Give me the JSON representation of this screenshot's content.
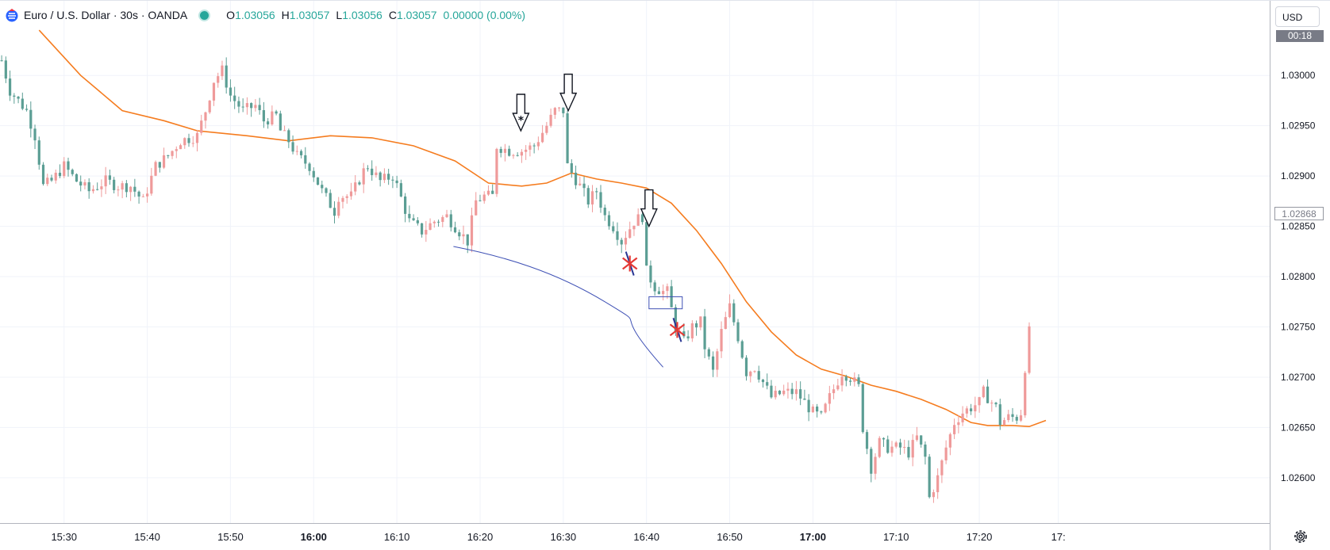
{
  "legend": {
    "symbol": "Euro / U.S. Dollar · 30s · OANDA",
    "open_label": "O",
    "open": "1.03056",
    "high_label": "H",
    "high": "1.03057",
    "low_label": "L",
    "low": "1.03056",
    "close_label": "C",
    "close": "1.03057",
    "change": "0.00000 (0.00%)"
  },
  "price_axis": {
    "currency": "USD",
    "countdown": "00:18",
    "last_price_label": "1.02868"
  },
  "icons": [
    "tradingview-logo-icon",
    "market-status-dot-icon",
    "settings-gear-icon"
  ],
  "colors": {
    "up": "#ef9a9a",
    "down": "#5b9e94",
    "ma": "#f57c1f",
    "curve": "#3f51b5",
    "cross": "#e53935",
    "grid": "#f0f3fa"
  },
  "chart_data": {
    "type": "candlestick",
    "xlabel": "",
    "ylabel": "",
    "ylim": [
      1.02555,
      1.03075
    ],
    "y_ticks": [
      1.03,
      1.0295,
      1.029,
      1.0285,
      1.028,
      1.0275,
      1.027,
      1.0265,
      1.026
    ],
    "y_tick_labels": [
      "1.03000",
      "1.02950",
      "1.02900",
      "1.02850",
      "1.02800",
      "1.02750",
      "1.02700",
      "1.02650",
      "1.02600"
    ],
    "x_range_minutes": [
      922.3,
      1074.9
    ],
    "x_ticks": [
      {
        "label": "15:30",
        "t": 930,
        "bold": false
      },
      {
        "label": "15:40",
        "t": 940,
        "bold": false
      },
      {
        "label": "15:50",
        "t": 950,
        "bold": false
      },
      {
        "label": "16:00",
        "t": 960,
        "bold": true
      },
      {
        "label": "16:10",
        "t": 970,
        "bold": false
      },
      {
        "label": "16:20",
        "t": 980,
        "bold": false
      },
      {
        "label": "16:30",
        "t": 990,
        "bold": false
      },
      {
        "label": "16:40",
        "t": 1000,
        "bold": false
      },
      {
        "label": "16:50",
        "t": 1010,
        "bold": false
      },
      {
        "label": "17:00",
        "t": 1020,
        "bold": true
      },
      {
        "label": "17:10",
        "t": 1030,
        "bold": false
      },
      {
        "label": "17:20",
        "t": 1040,
        "bold": false
      },
      {
        "label": "17:",
        "t": 1049.5,
        "bold": false
      }
    ],
    "close_path": [
      [
        922.5,
        1.03015
      ],
      [
        923.5,
        1.02985
      ],
      [
        925.5,
        1.02965
      ],
      [
        926.5,
        1.0294
      ],
      [
        927.5,
        1.0289
      ],
      [
        928.5,
        1.02895
      ],
      [
        930.0,
        1.0291
      ],
      [
        931.5,
        1.02895
      ],
      [
        933.0,
        1.02885
      ],
      [
        935.0,
        1.02895
      ],
      [
        936.5,
        1.0289
      ],
      [
        938.0,
        1.0289
      ],
      [
        939.5,
        1.02875
      ],
      [
        941.0,
        1.0291
      ],
      [
        942.5,
        1.0292
      ],
      [
        944.0,
        1.02935
      ],
      [
        946.0,
        1.0294
      ],
      [
        947.0,
        1.02965
      ],
      [
        948.0,
        1.02995
      ],
      [
        949.0,
        1.03005
      ],
      [
        950.0,
        1.0298
      ],
      [
        951.5,
        1.02965
      ],
      [
        953.0,
        1.0297
      ],
      [
        954.0,
        1.02955
      ],
      [
        955.5,
        1.0296
      ],
      [
        956.0,
        1.02945
      ],
      [
        957.0,
        1.02935
      ],
      [
        958.0,
        1.0292
      ],
      [
        959.5,
        1.0291
      ],
      [
        961.0,
        1.02885
      ],
      [
        962.5,
        1.02865
      ],
      [
        963.0,
        1.0288
      ],
      [
        964.5,
        1.0288
      ],
      [
        966.0,
        1.02905
      ],
      [
        966.5,
        1.0291
      ],
      [
        968.0,
        1.02895
      ],
      [
        969.5,
        1.029
      ],
      [
        970.0,
        1.0289
      ],
      [
        971.5,
        1.02855
      ],
      [
        973.0,
        1.02845
      ],
      [
        974.5,
        1.02855
      ],
      [
        976.0,
        1.0286
      ],
      [
        977.5,
        1.02845
      ],
      [
        978.5,
        1.02835
      ],
      [
        979.5,
        1.02875
      ],
      [
        980.5,
        1.0288
      ],
      [
        981.5,
        1.0288
      ],
      [
        982.0,
        1.0293
      ],
      [
        983.5,
        1.02925
      ],
      [
        985.0,
        1.02925
      ],
      [
        986.5,
        1.0293
      ],
      [
        988.0,
        1.0295
      ],
      [
        989.0,
        1.02965
      ],
      [
        990.0,
        1.02965
      ],
      [
        990.5,
        1.0291
      ],
      [
        992.0,
        1.0289
      ],
      [
        993.0,
        1.02875
      ],
      [
        994.0,
        1.02885
      ],
      [
        995.0,
        1.0286
      ],
      [
        996.0,
        1.0285
      ],
      [
        997.0,
        1.02835
      ],
      [
        998.5,
        1.02855
      ],
      [
        999.5,
        1.0286
      ],
      [
        1000.0,
        1.02805
      ],
      [
        1001.0,
        1.0279
      ],
      [
        1002.0,
        1.02785
      ],
      [
        1002.5,
        1.02785
      ],
      [
        1003.5,
        1.0275
      ],
      [
        1004.5,
        1.02735
      ],
      [
        1005.5,
        1.0275
      ],
      [
        1006.5,
        1.02755
      ],
      [
        1007.0,
        1.0273
      ],
      [
        1008.0,
        1.02705
      ],
      [
        1009.0,
        1.02745
      ],
      [
        1010.0,
        1.0277
      ],
      [
        1011.0,
        1.0274
      ],
      [
        1012.0,
        1.02705
      ],
      [
        1013.0,
        1.0271
      ],
      [
        1014.0,
        1.02695
      ],
      [
        1015.0,
        1.0268
      ],
      [
        1016.5,
        1.02685
      ],
      [
        1018.0,
        1.02685
      ],
      [
        1019.0,
        1.02675
      ],
      [
        1020.0,
        1.02665
      ],
      [
        1021.0,
        1.0266
      ],
      [
        1022.0,
        1.0268
      ],
      [
        1023.5,
        1.02705
      ],
      [
        1024.5,
        1.027
      ],
      [
        1025.5,
        1.0269
      ],
      [
        1026.0,
        1.0265
      ],
      [
        1027.0,
        1.0261
      ],
      [
        1028.0,
        1.02635
      ],
      [
        1029.0,
        1.0263
      ],
      [
        1030.5,
        1.0263
      ],
      [
        1031.5,
        1.02625
      ],
      [
        1032.5,
        1.0264
      ],
      [
        1033.5,
        1.0262
      ],
      [
        1034.0,
        1.0258
      ],
      [
        1035.0,
        1.026
      ],
      [
        1036.0,
        1.0263
      ],
      [
        1037.0,
        1.02655
      ],
      [
        1038.0,
        1.02665
      ],
      [
        1039.0,
        1.0267
      ],
      [
        1040.0,
        1.02675
      ],
      [
        1040.5,
        1.02685
      ],
      [
        1041.0,
        1.0268
      ],
      [
        1042.0,
        1.0267
      ],
      [
        1042.5,
        1.02655
      ],
      [
        1043.5,
        1.0266
      ],
      [
        1044.5,
        1.0266
      ],
      [
        1045.0,
        1.02665
      ],
      [
        1045.5,
        1.0271
      ],
      [
        1046.0,
        1.02745
      ]
    ],
    "moving_average": [
      [
        927,
        1.03045
      ],
      [
        932,
        1.03
      ],
      [
        937,
        1.02965
      ],
      [
        942,
        1.02955
      ],
      [
        946,
        1.02945
      ],
      [
        952,
        1.0294
      ],
      [
        957,
        1.02935
      ],
      [
        962,
        1.0294
      ],
      [
        967,
        1.02938
      ],
      [
        972,
        1.0293
      ],
      [
        977,
        1.02915
      ],
      [
        981,
        1.02893
      ],
      [
        985,
        1.0289
      ],
      [
        988,
        1.02893
      ],
      [
        991,
        1.02903
      ],
      [
        994,
        1.02897
      ],
      [
        997,
        1.02893
      ],
      [
        1000,
        1.02888
      ],
      [
        1003,
        1.02873
      ],
      [
        1006,
        1.02846
      ],
      [
        1009,
        1.02813
      ],
      [
        1012,
        1.02775
      ],
      [
        1015,
        1.02745
      ],
      [
        1018,
        1.02722
      ],
      [
        1021,
        1.02708
      ],
      [
        1024,
        1.02701
      ],
      [
        1027,
        1.02692
      ],
      [
        1030,
        1.02686
      ],
      [
        1033,
        1.02678
      ],
      [
        1036,
        1.02668
      ],
      [
        1039,
        1.02655
      ],
      [
        1041,
        1.02652
      ],
      [
        1044,
        1.02652
      ],
      [
        1046,
        1.02651
      ],
      [
        1048,
        1.02657
      ]
    ],
    "drawings": {
      "curve": [
        [
          976.8,
          1.0283
        ],
        [
          983,
          1.0282
        ],
        [
          989,
          1.02805
        ],
        [
          995,
          1.02775
        ],
        [
          1002,
          1.0271
        ]
      ],
      "down_arrows": [
        [
          984.9,
          1.02945
        ],
        [
          990.6,
          1.02965
        ],
        [
          1000.3,
          1.0285
        ]
      ],
      "asterisk_marker": [
        984.9,
        1.02955
      ],
      "crosses": [
        [
          998.0,
          1.02813
        ],
        [
          1003.7,
          1.02747
        ]
      ],
      "box": {
        "t0": 1000.3,
        "t1": 1004.3,
        "y_top": 1.0278,
        "y_bottom": 1.02768
      }
    }
  }
}
